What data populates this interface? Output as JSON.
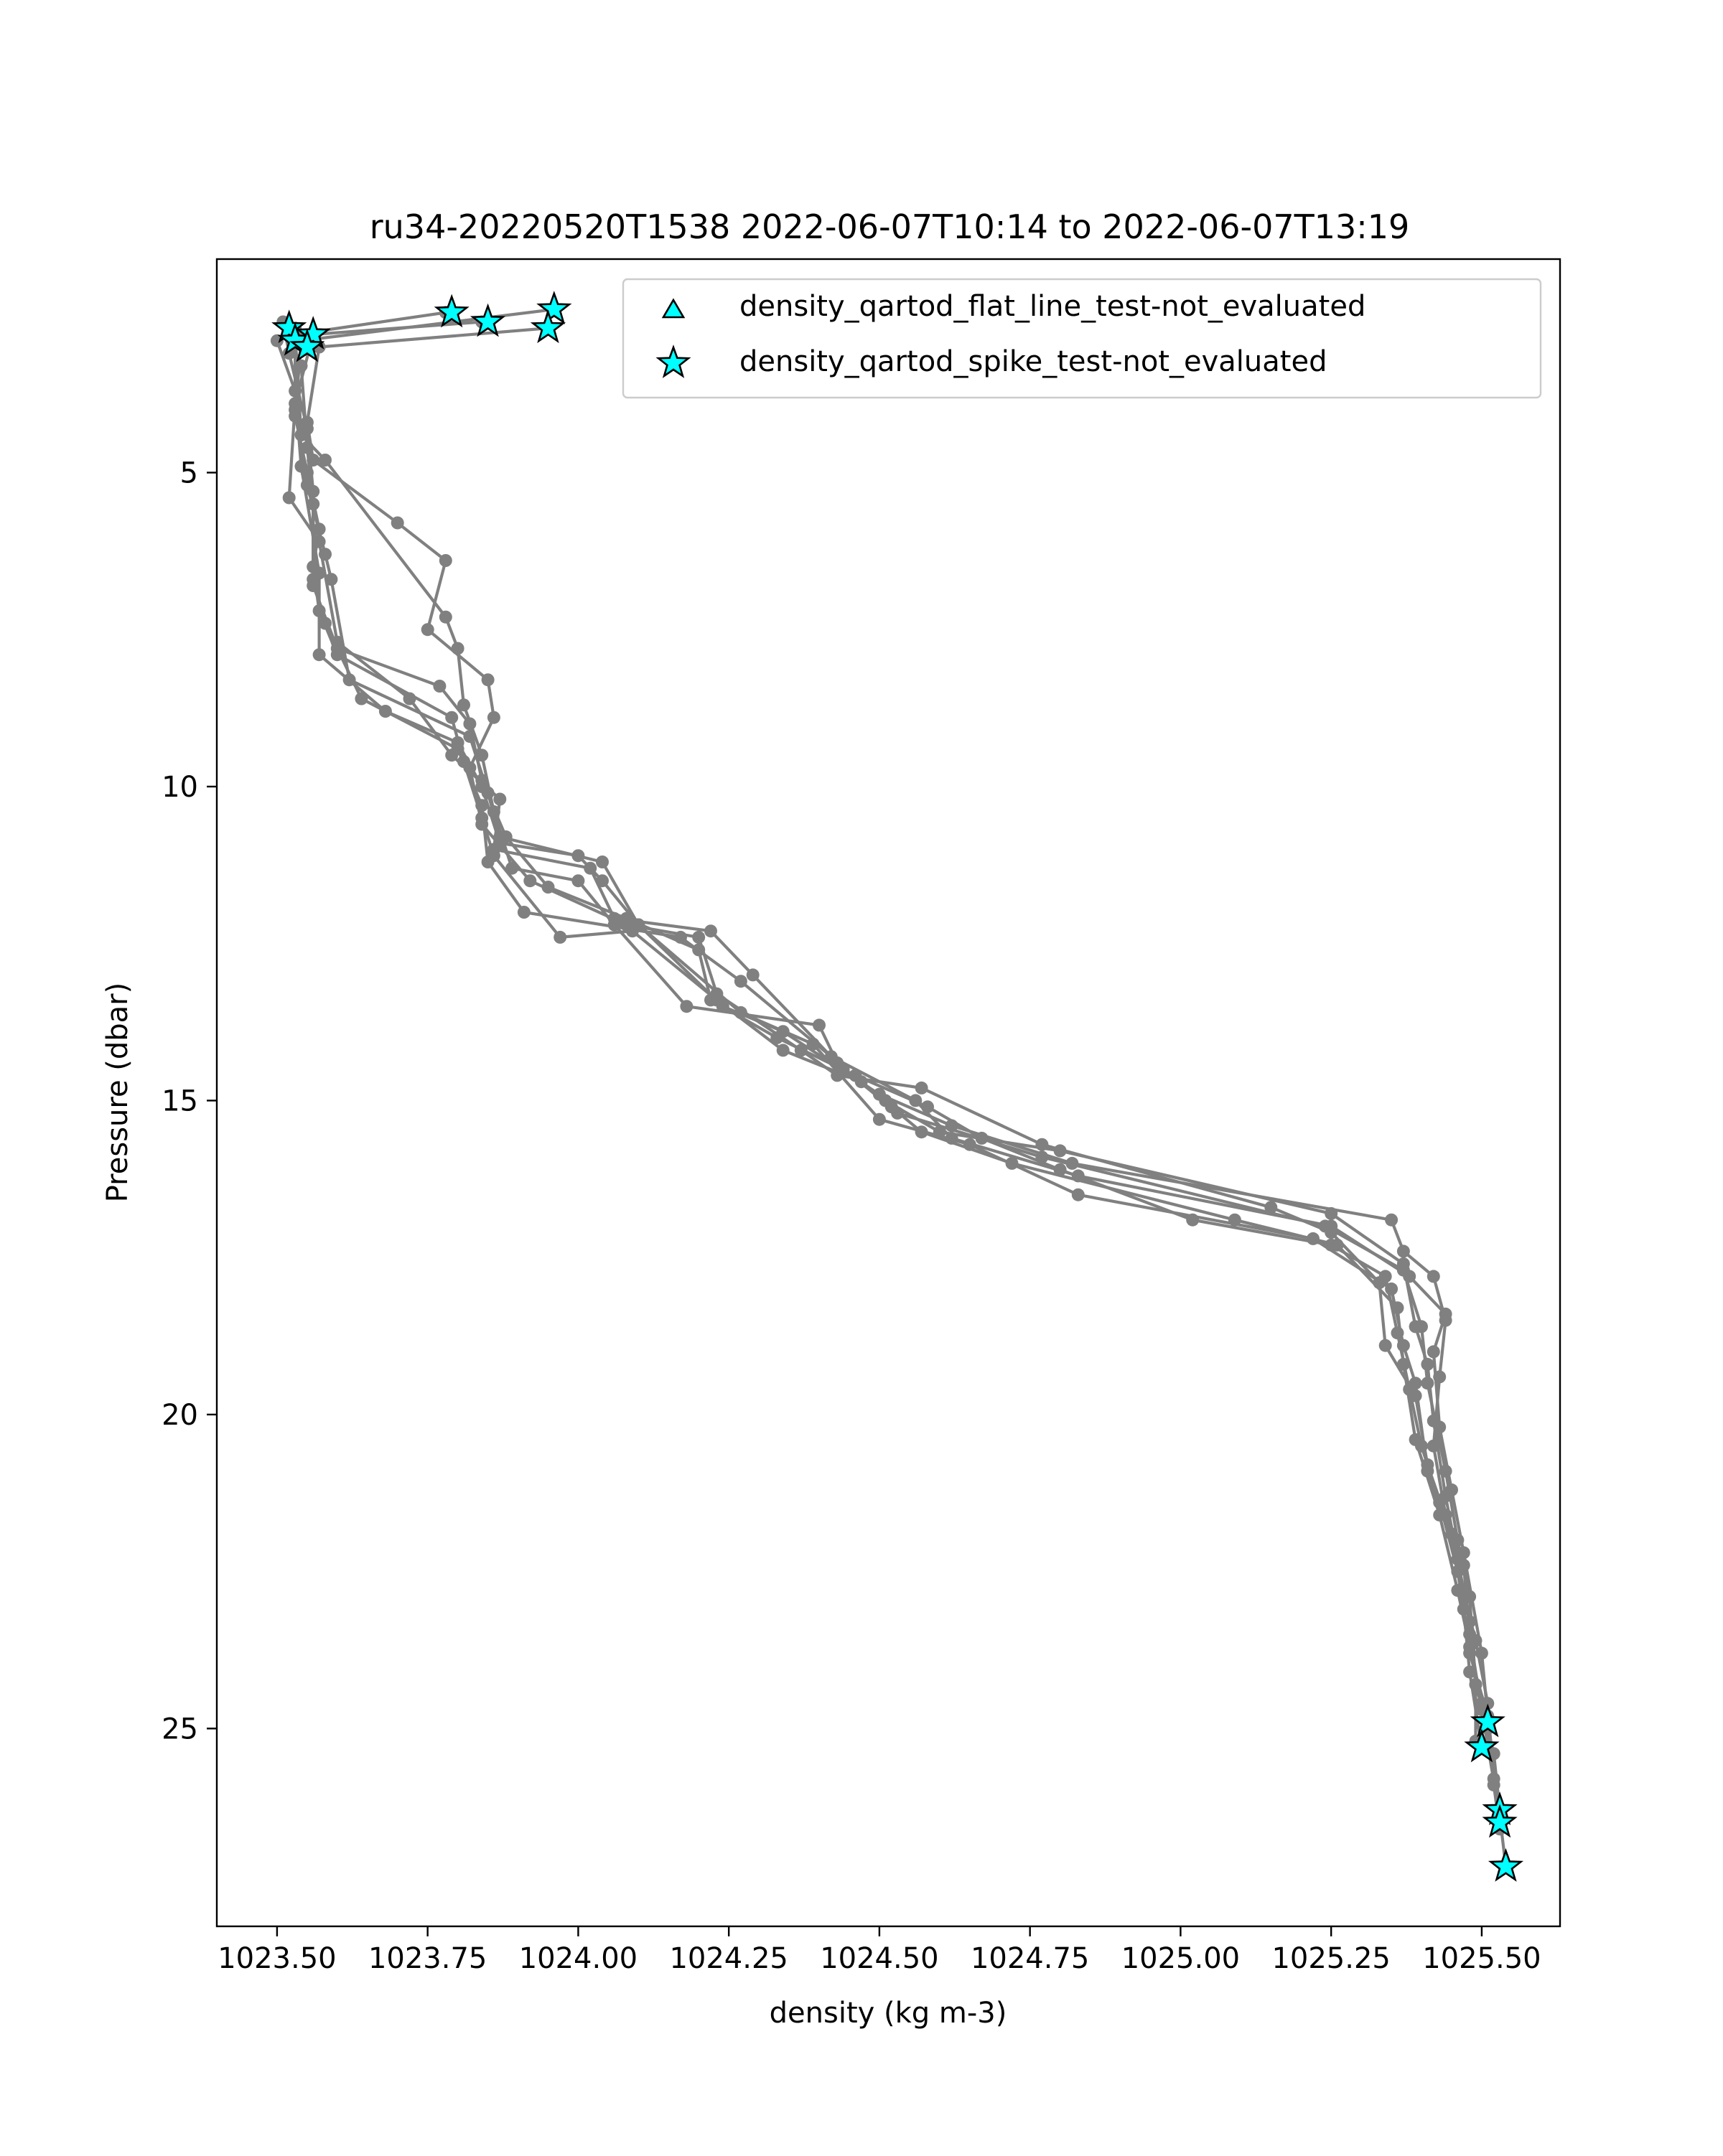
{
  "chart_data": {
    "type": "line",
    "title": "ru34-20220520T1538 2022-06-07T10:14 to 2022-06-07T13:19",
    "xlabel": "density (kg m-3)",
    "ylabel": "Pressure (dbar)",
    "xlim": [
      1023.4,
      1025.63
    ],
    "ylim": [
      28.15,
      1.6
    ],
    "y_inverted": true,
    "x_ticks": [
      1023.5,
      1023.75,
      1024.0,
      1024.25,
      1024.5,
      1024.75,
      1025.0,
      1025.25,
      1025.5
    ],
    "x_tick_labels": [
      "1023.50",
      "1023.75",
      "1024.00",
      "1024.25",
      "1024.50",
      "1024.75",
      "1025.00",
      "1025.25",
      "1025.50"
    ],
    "y_ticks": [
      5,
      10,
      15,
      20,
      25
    ],
    "y_tick_labels": [
      "5",
      "10",
      "15",
      "20",
      "25"
    ],
    "grid": false,
    "legend_placement": "top-right",
    "colors": {
      "profile_line": "#808080",
      "marker_fill": "#00ffff",
      "marker_edge": "#000000"
    },
    "legend": [
      {
        "label": "density_qartod_flat_line_test-not_evaluated",
        "marker": "triangle"
      },
      {
        "label": "density_qartod_spike_test-not_evaluated",
        "marker": "star"
      }
    ],
    "series": [
      {
        "values": [
          [
            1023.96,
            2.4
          ],
          [
            1023.54,
            2.9
          ],
          [
            1023.53,
            4.1
          ],
          [
            1023.55,
            5.0
          ],
          [
            1023.57,
            5.9
          ],
          [
            1023.56,
            6.5
          ],
          [
            1023.57,
            7.2
          ],
          [
            1023.6,
            7.9
          ],
          [
            1023.79,
            8.9
          ],
          [
            1023.81,
            9.6
          ],
          [
            1023.84,
            10.5
          ],
          [
            1023.86,
            11.1
          ],
          [
            1023.97,
            12.4
          ],
          [
            1024.09,
            12.3
          ],
          [
            1024.23,
            13.4
          ],
          [
            1024.34,
            14.2
          ],
          [
            1024.47,
            14.7
          ],
          [
            1024.51,
            15.0
          ],
          [
            1024.6,
            15.5
          ],
          [
            1024.8,
            15.8
          ],
          [
            1025.25,
            16.8
          ],
          [
            1025.37,
            17.6
          ],
          [
            1025.39,
            18.6
          ],
          [
            1025.41,
            19.2
          ],
          [
            1025.42,
            20.1
          ],
          [
            1025.44,
            21.3
          ],
          [
            1025.46,
            22.3
          ],
          [
            1025.48,
            23.3
          ],
          [
            1025.49,
            24.3
          ],
          [
            1025.51,
            25.0
          ],
          [
            1025.53,
            26.3
          ],
          [
            1025.53,
            26.5
          ]
        ]
      },
      {
        "values": [
          [
            1023.95,
            2.7
          ],
          [
            1023.57,
            3.0
          ],
          [
            1023.55,
            4.2
          ],
          [
            1023.56,
            4.8
          ],
          [
            1023.7,
            5.8
          ],
          [
            1023.78,
            6.4
          ],
          [
            1023.75,
            7.5
          ],
          [
            1023.85,
            8.3
          ],
          [
            1023.86,
            8.9
          ],
          [
            1023.82,
            9.7
          ],
          [
            1023.84,
            10.6
          ],
          [
            1023.92,
            11.5
          ],
          [
            1024.08,
            12.2
          ],
          [
            1024.2,
            12.4
          ],
          [
            1024.23,
            13.3
          ],
          [
            1024.37,
            14.2
          ],
          [
            1024.43,
            14.6
          ],
          [
            1024.57,
            14.8
          ],
          [
            1024.77,
            15.7
          ],
          [
            1025.15,
            16.7
          ],
          [
            1025.25,
            17.1
          ],
          [
            1025.33,
            17.9
          ],
          [
            1025.34,
            18.9
          ],
          [
            1025.39,
            19.7
          ],
          [
            1025.41,
            20.8
          ],
          [
            1025.45,
            21.9
          ],
          [
            1025.47,
            23.1
          ],
          [
            1025.48,
            24.1
          ],
          [
            1025.5,
            25.3
          ]
        ]
      },
      {
        "values": [
          [
            1023.84,
            2.6
          ],
          [
            1023.56,
            2.8
          ],
          [
            1023.53,
            3.9
          ],
          [
            1023.52,
            5.4
          ],
          [
            1023.57,
            6.1
          ],
          [
            1023.6,
            7.7
          ],
          [
            1023.72,
            8.6
          ],
          [
            1023.79,
            9.5
          ],
          [
            1023.87,
            10.2
          ],
          [
            1023.86,
            11.0
          ],
          [
            1024.02,
            11.3
          ],
          [
            1024.06,
            12.1
          ],
          [
            1024.22,
            12.3
          ],
          [
            1024.29,
            13.0
          ],
          [
            1024.44,
            14.5
          ],
          [
            1024.52,
            15.1
          ],
          [
            1024.57,
            15.5
          ],
          [
            1024.72,
            16.0
          ],
          [
            1025.09,
            16.9
          ],
          [
            1025.26,
            17.3
          ],
          [
            1025.36,
            18.3
          ],
          [
            1025.37,
            19.2
          ],
          [
            1025.39,
            20.4
          ],
          [
            1025.43,
            21.6
          ],
          [
            1025.46,
            22.8
          ],
          [
            1025.48,
            23.7
          ],
          [
            1025.5,
            24.6
          ],
          [
            1025.52,
            25.4
          ],
          [
            1025.53,
            26.3
          ]
        ]
      },
      {
        "values": [
          [
            1023.78,
            2.45
          ],
          [
            1023.53,
            2.8
          ],
          [
            1023.54,
            4.4
          ],
          [
            1023.58,
            4.8
          ],
          [
            1023.78,
            7.3
          ],
          [
            1023.8,
            7.8
          ],
          [
            1023.81,
            8.7
          ],
          [
            1023.84,
            9.5
          ],
          [
            1023.86,
            10.4
          ],
          [
            1023.89,
            11.3
          ],
          [
            1024.0,
            11.5
          ],
          [
            1024.06,
            12.2
          ],
          [
            1024.18,
            13.5
          ],
          [
            1024.4,
            13.8
          ],
          [
            1024.43,
            14.4
          ],
          [
            1024.53,
            15.2
          ],
          [
            1024.77,
            15.9
          ],
          [
            1025.24,
            17.0
          ],
          [
            1025.37,
            17.7
          ],
          [
            1025.4,
            18.6
          ],
          [
            1025.41,
            19.5
          ],
          [
            1025.44,
            20.9
          ],
          [
            1025.46,
            22.0
          ],
          [
            1025.48,
            22.9
          ],
          [
            1025.49,
            24.3
          ],
          [
            1025.49,
            25.2
          ]
        ]
      },
      {
        "values": [
          [
            1023.53,
            2.7
          ],
          [
            1023.53,
            4.0
          ],
          [
            1023.55,
            5.2
          ],
          [
            1023.58,
            6.3
          ],
          [
            1023.59,
            6.7
          ],
          [
            1023.62,
            8.3
          ],
          [
            1023.82,
            9.2
          ],
          [
            1023.85,
            10.1
          ],
          [
            1023.87,
            10.8
          ],
          [
            1024.04,
            11.2
          ],
          [
            1024.1,
            12.2
          ],
          [
            1024.27,
            13.6
          ],
          [
            1024.39,
            14.1
          ],
          [
            1024.5,
            15.3
          ],
          [
            1024.65,
            15.7
          ],
          [
            1024.83,
            16.5
          ],
          [
            1025.22,
            17.2
          ],
          [
            1025.35,
            18.0
          ],
          [
            1025.37,
            18.9
          ],
          [
            1025.39,
            19.5
          ],
          [
            1025.41,
            20.9
          ],
          [
            1025.46,
            22.3
          ],
          [
            1025.48,
            23.8
          ],
          [
            1025.51,
            24.8
          ],
          [
            1025.54,
            27.2
          ]
        ]
      },
      {
        "values": [
          [
            1023.5,
            2.9
          ],
          [
            1023.53,
            3.7
          ],
          [
            1023.54,
            4.9
          ],
          [
            1023.57,
            6.6
          ],
          [
            1023.57,
            7.9
          ],
          [
            1023.68,
            8.8
          ],
          [
            1023.8,
            9.3
          ],
          [
            1023.84,
            10.0
          ],
          [
            1023.87,
            10.9
          ],
          [
            1024.0,
            11.1
          ],
          [
            1024.04,
            11.5
          ],
          [
            1024.1,
            12.2
          ],
          [
            1024.24,
            13.5
          ],
          [
            1024.34,
            13.9
          ],
          [
            1024.5,
            14.9
          ],
          [
            1024.62,
            15.4
          ],
          [
            1024.82,
            16.0
          ],
          [
            1025.35,
            16.9
          ],
          [
            1025.37,
            17.4
          ],
          [
            1025.42,
            17.8
          ],
          [
            1025.44,
            18.5
          ],
          [
            1025.43,
            19.4
          ],
          [
            1025.42,
            20.5
          ],
          [
            1025.44,
            21.6
          ],
          [
            1025.47,
            22.4
          ],
          [
            1025.48,
            23.5
          ],
          [
            1025.5,
            24.7
          ],
          [
            1025.53,
            26.4
          ]
        ]
      },
      {
        "values": [
          [
            1023.51,
            2.6
          ],
          [
            1023.52,
            3.1
          ],
          [
            1023.55,
            4.3
          ],
          [
            1023.56,
            5.3
          ],
          [
            1023.56,
            6.7
          ],
          [
            1023.58,
            7.4
          ],
          [
            1023.64,
            8.6
          ],
          [
            1023.8,
            9.4
          ],
          [
            1023.84,
            10.3
          ],
          [
            1023.85,
            11.2
          ],
          [
            1023.91,
            12.0
          ],
          [
            1024.17,
            12.4
          ],
          [
            1024.27,
            13.1
          ],
          [
            1024.42,
            14.3
          ],
          [
            1024.56,
            15.0
          ],
          [
            1024.62,
            15.6
          ],
          [
            1024.83,
            16.2
          ],
          [
            1025.25,
            17.0
          ],
          [
            1025.38,
            17.8
          ],
          [
            1025.44,
            18.4
          ],
          [
            1025.42,
            19.0
          ],
          [
            1025.43,
            20.2
          ],
          [
            1025.45,
            21.2
          ],
          [
            1025.47,
            22.2
          ],
          [
            1025.5,
            23.8
          ],
          [
            1025.52,
            25.8
          ]
        ]
      },
      {
        "values": [
          [
            1023.52,
            2.8
          ],
          [
            1023.54,
            3.3
          ],
          [
            1023.55,
            4.6
          ],
          [
            1023.56,
            5.5
          ],
          [
            1023.56,
            6.8
          ],
          [
            1023.6,
            7.8
          ],
          [
            1023.77,
            8.4
          ],
          [
            1023.82,
            9.0
          ],
          [
            1023.84,
            9.9
          ],
          [
            1023.88,
            10.8
          ],
          [
            1023.95,
            11.6
          ],
          [
            1024.08,
            12.1
          ],
          [
            1024.2,
            12.6
          ],
          [
            1024.22,
            13.4
          ],
          [
            1024.33,
            14.0
          ],
          [
            1024.46,
            14.6
          ],
          [
            1024.58,
            15.1
          ],
          [
            1024.67,
            15.6
          ],
          [
            1024.8,
            16.1
          ],
          [
            1025.02,
            16.9
          ],
          [
            1025.25,
            17.3
          ],
          [
            1025.34,
            17.8
          ],
          [
            1025.36,
            18.7
          ],
          [
            1025.38,
            19.6
          ],
          [
            1025.4,
            20.5
          ],
          [
            1025.43,
            21.4
          ],
          [
            1025.46,
            22.5
          ],
          [
            1025.49,
            23.6
          ],
          [
            1025.51,
            24.6
          ],
          [
            1025.52,
            25.9
          ],
          [
            1025.53,
            26.6
          ]
        ]
      }
    ],
    "flagged_points": [
      {
        "test": "density_qartod_spike_test-not_evaluated",
        "points": [
          [
            1023.79,
            2.45
          ],
          [
            1023.85,
            2.6
          ],
          [
            1023.96,
            2.4
          ],
          [
            1023.95,
            2.7
          ],
          [
            1023.52,
            2.7
          ],
          [
            1023.53,
            2.9
          ],
          [
            1023.56,
            2.8
          ],
          [
            1023.55,
            3.0
          ],
          [
            1025.51,
            24.9
          ],
          [
            1025.5,
            25.3
          ],
          [
            1025.53,
            26.3
          ],
          [
            1025.53,
            26.5
          ],
          [
            1025.54,
            27.2
          ]
        ]
      }
    ]
  }
}
